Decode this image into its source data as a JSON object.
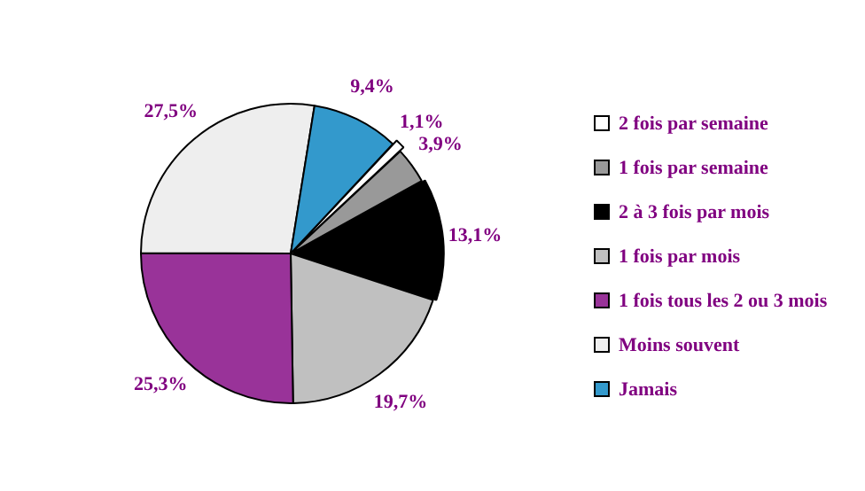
{
  "chart_data": {
    "type": "pie",
    "categories": [
      "2 fois par semaine",
      "1 fois par semaine",
      "2 à 3 fois par mois",
      "1 fois par mois",
      "1 fois tous les 2 ou 3 mois",
      "Moins souvent",
      "Jamais"
    ],
    "values": [
      1.1,
      3.9,
      13.1,
      19.7,
      25.3,
      27.5,
      9.4
    ],
    "colors": [
      "#ffffff",
      "#999999",
      "#000000",
      "#c0c0c0",
      "#993399",
      "#eeeeee",
      "#3399cc"
    ],
    "value_labels": [
      "1,1%",
      "3,9%",
      "13,1%",
      "19,7%",
      "25,3%",
      "27,5%",
      "9,4%"
    ],
    "legend": "right"
  }
}
